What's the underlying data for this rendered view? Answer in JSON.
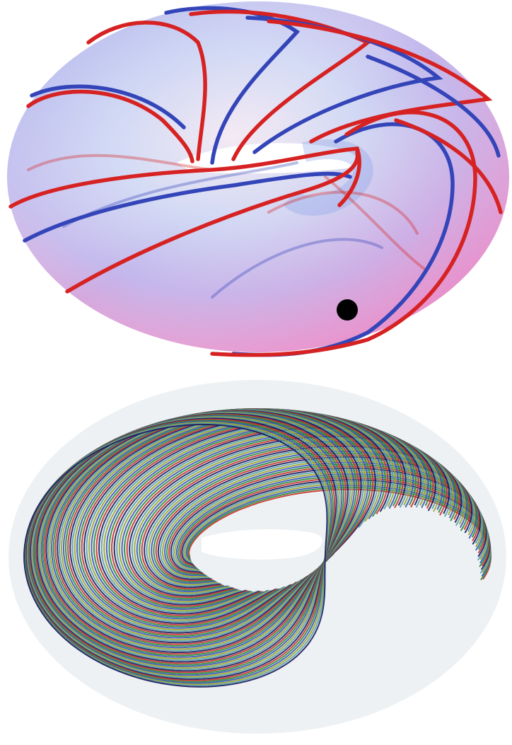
{
  "figure": {
    "top_panel": {
      "surface_colors": [
        "#e5d9f5",
        "#b9c8f0",
        "#f1b3d6"
      ],
      "curve_colors": [
        "#d62222",
        "#3345b8"
      ],
      "marker_color": "#000000"
    },
    "bottom_panel": {
      "curve_colors": [
        "#c8322e",
        "#2c8a3c",
        "#3756b8",
        "#9aa32c",
        "#5aa0a8",
        "#1b1b5e"
      ]
    }
  }
}
